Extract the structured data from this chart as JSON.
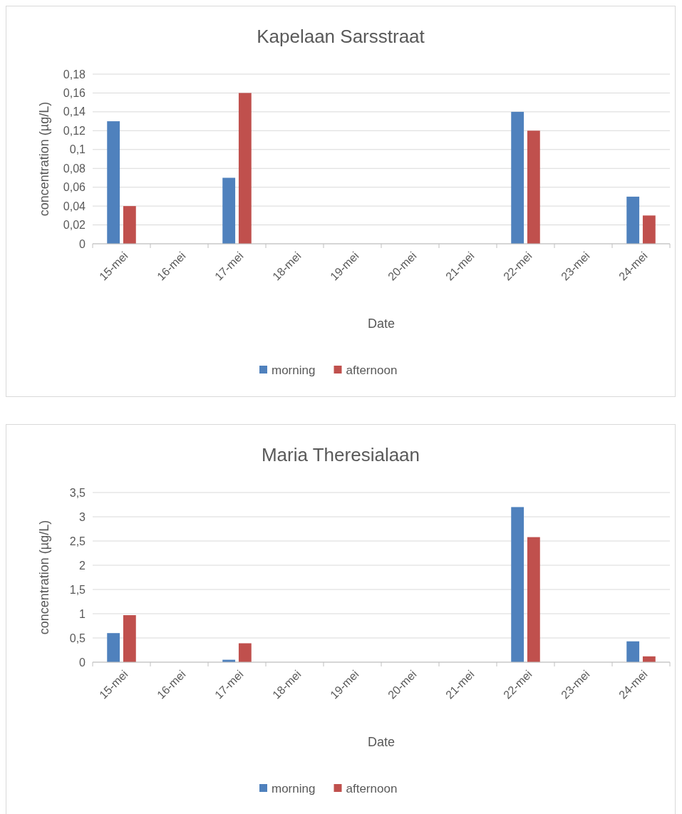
{
  "chart_data": [
    {
      "type": "bar",
      "title": "Kapelaan Sarsstraat",
      "xlabel": "Date",
      "ylabel": "concentration (µg/L)",
      "categories": [
        "15-mei",
        "16-mei",
        "17-mei",
        "18-mei",
        "19-mei",
        "20-mei",
        "21-mei",
        "22-mei",
        "23-mei",
        "24-mei"
      ],
      "series": [
        {
          "name": "morning",
          "color": "#4f81bd",
          "values": [
            0.13,
            null,
            0.07,
            null,
            null,
            null,
            null,
            0.14,
            null,
            0.05
          ]
        },
        {
          "name": "afternoon",
          "color": "#c0504d",
          "values": [
            0.04,
            null,
            0.16,
            null,
            null,
            null,
            null,
            0.12,
            null,
            0.03
          ]
        }
      ],
      "ylim": [
        0,
        0.18
      ],
      "yticks": [
        0,
        {
          "value": 0.02,
          "label": "0,02"
        },
        {
          "value": 0.04,
          "label": "0,04"
        },
        {
          "value": 0.06,
          "label": "0,06"
        },
        {
          "value": 0.08,
          "label": "0,08"
        },
        {
          "value": 0.1,
          "label": "0,1"
        },
        {
          "value": 0.12,
          "label": "0,12"
        },
        {
          "value": 0.14,
          "label": "0,14"
        },
        {
          "value": 0.16,
          "label": "0,16"
        },
        {
          "value": 0.18,
          "label": "0,18"
        }
      ],
      "grid": "y",
      "legend": "bottom"
    },
    {
      "type": "bar",
      "title": "Maria Theresialaan",
      "xlabel": "Date",
      "ylabel": "concentration (µg/L)",
      "categories": [
        "15-mei",
        "16-mei",
        "17-mei",
        "18-mei",
        "19-mei",
        "20-mei",
        "21-mei",
        "22-mei",
        "23-mei",
        "24-mei"
      ],
      "series": [
        {
          "name": "morning",
          "color": "#4f81bd",
          "values": [
            0.6,
            null,
            0.05,
            null,
            null,
            null,
            null,
            3.2,
            null,
            0.43
          ]
        },
        {
          "name": "afternoon",
          "color": "#c0504d",
          "values": [
            0.97,
            null,
            0.39,
            null,
            null,
            null,
            null,
            2.58,
            null,
            0.12
          ]
        }
      ],
      "ylim": [
        0,
        3.5
      ],
      "yticks": [
        0,
        {
          "value": 0.5,
          "label": "0,5"
        },
        1,
        {
          "value": 1.5,
          "label": "1,5"
        },
        2,
        {
          "value": 2.5,
          "label": "2,5"
        },
        3,
        {
          "value": 3.5,
          "label": "3,5"
        }
      ],
      "grid": "y",
      "legend": "bottom"
    }
  ]
}
